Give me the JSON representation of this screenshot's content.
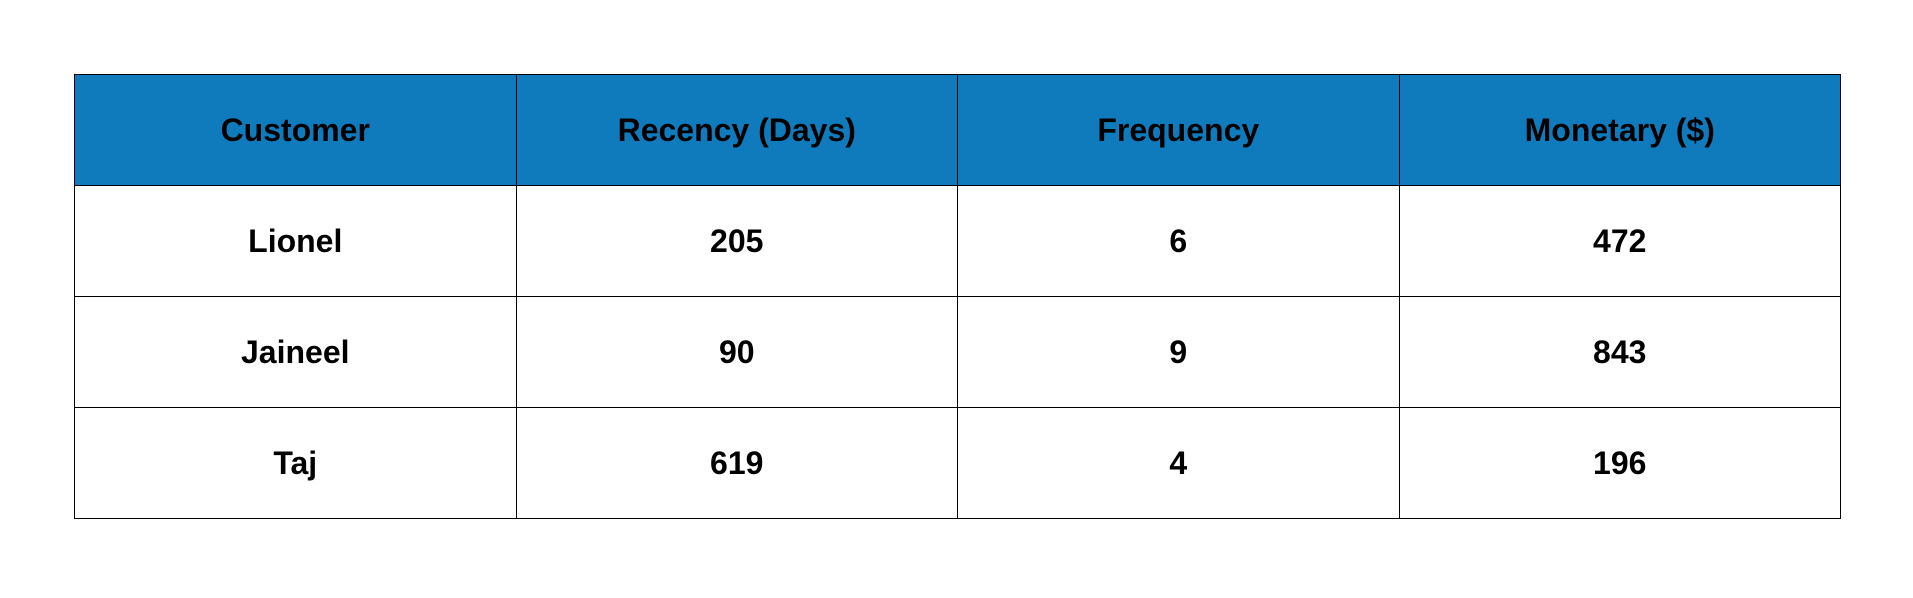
{
  "table": {
    "header_color": "#0f7bbd",
    "columns": [
      "Customer",
      "Recency (Days)",
      "Frequency",
      "Monetary ($)"
    ],
    "rows": [
      [
        "Lionel",
        "205",
        "6",
        "472"
      ],
      [
        "Jaineel",
        "90",
        "9",
        "843"
      ],
      [
        "Taj",
        "619",
        "4",
        "196"
      ]
    ]
  }
}
